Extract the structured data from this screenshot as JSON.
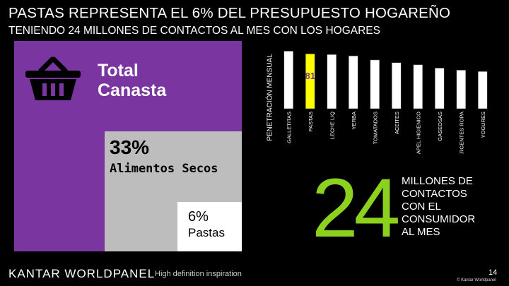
{
  "slide": {
    "title": "PASTAS REPRESENTA  EL 6% DEL PRESUPUESTO HOGAREÑO",
    "subtitle": "TENIENDO 24 MILLONES DE CONTACTOS AL MES CON LOS HOGARES",
    "basket_icon": "shopping-basket-icon",
    "total_label": "Total\nCanasta",
    "secos_pct": "33%",
    "secos_label": "Alimentos Secos",
    "pastas_pct": "6%",
    "pastas_label": "Pastas",
    "big_number": "24",
    "contacts_text": "MILLONES DE\nCONTACTOS\nCON EL\nCONSUMIDOR\nAL MES",
    "logo": "KANTAR WORLDPANEL",
    "tagline": "High definition inspiration",
    "page_number": "14",
    "copyright": "© Kantar Worldpanel"
  },
  "colors": {
    "purple": "#7a35a0",
    "gray": "#bdbdbd",
    "highlight": "#ffff00",
    "green": "#8cd11e"
  },
  "chart_data": {
    "type": "bar",
    "ylabel": "PENETRACIÓN MENSUAL",
    "highlight_value_label": "81",
    "categories": [
      "GALLETITAS",
      "PASTAS",
      "LECHE LIQ",
      "YERBA",
      "TOMATADOS",
      "ACEITES",
      "PAPEL HIGIENICO",
      "GASEOSAS",
      "DETERGENTES ROPA",
      "YOGURES"
    ],
    "values": [
      85,
      81,
      80,
      78,
      72,
      68,
      65,
      60,
      57,
      55
    ],
    "highlight_index": 1,
    "ylim": [
      0,
      100
    ]
  }
}
